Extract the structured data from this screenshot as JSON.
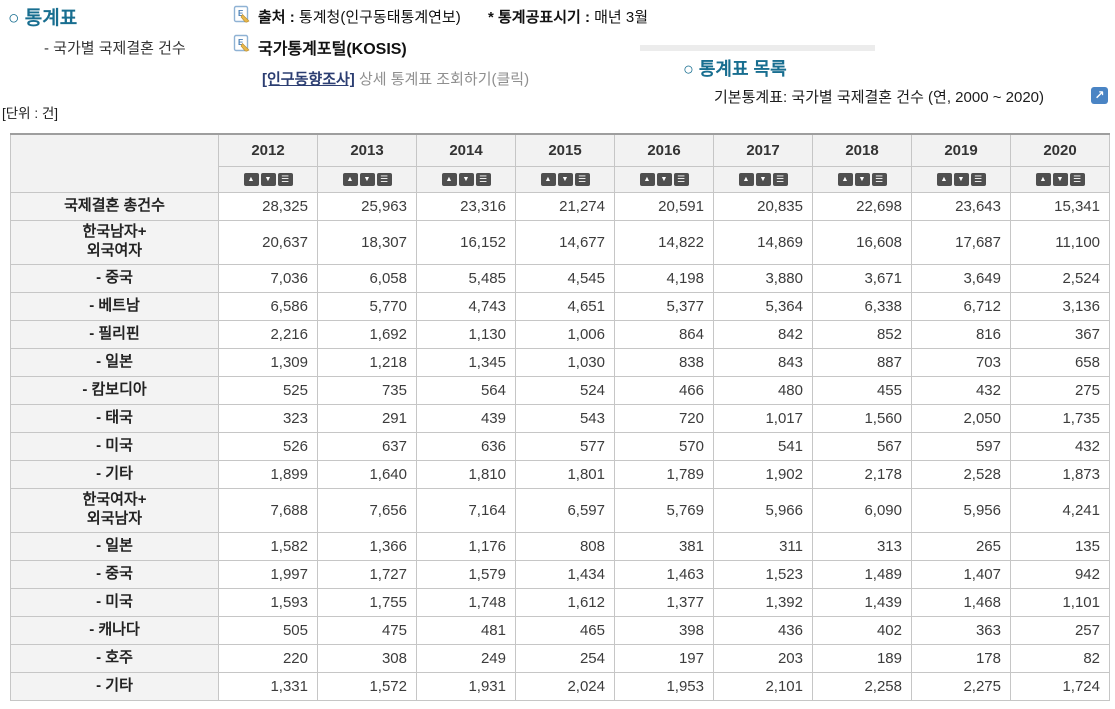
{
  "header": {
    "left_title": "○ 통계표",
    "left_subtitle": "- 국가별 국제결혼 건수",
    "source_label": "출처 :",
    "source_value": " 통계청(인구동태통계연보)",
    "publish_label": "* 통계공표시기 :",
    "publish_value": " 매년 3월",
    "kosis_label": "국가통계포털(KOSIS)",
    "survey_link": "[인구동향조사]",
    "survey_suffix": " 상세 통계표 조회하기(클릭)",
    "right_title": "○ 통계표 목록",
    "right_subtitle": "기본통계표: 국가별 국제결혼 건수 (연, 2000 ~ 2020)",
    "unit": "[단위 : 건]"
  },
  "icons": {
    "external_link_glyph": "↗",
    "sort_asc": "▲",
    "sort_desc": "▼",
    "sort_menu": "☰"
  },
  "colors": {
    "section_title": "#186e90",
    "link_navy": "#2c3e72",
    "header_bg": "#f2f2f2",
    "sort_button_bg": "#4f4f4f",
    "external_icon_bg": "#4a84c4"
  },
  "table": {
    "years": [
      "2012",
      "2013",
      "2014",
      "2015",
      "2016",
      "2017",
      "2018",
      "2019",
      "2020"
    ],
    "rows": [
      {
        "label": "국제결혼 총건수",
        "tall": false,
        "values": [
          "28,325",
          "25,963",
          "23,316",
          "21,274",
          "20,591",
          "20,835",
          "22,698",
          "23,643",
          "15,341"
        ]
      },
      {
        "label": "한국남자+\n외국여자",
        "tall": true,
        "values": [
          "20,637",
          "18,307",
          "16,152",
          "14,677",
          "14,822",
          "14,869",
          "16,608",
          "17,687",
          "11,100"
        ]
      },
      {
        "label": "- 중국",
        "tall": false,
        "values": [
          "7,036",
          "6,058",
          "5,485",
          "4,545",
          "4,198",
          "3,880",
          "3,671",
          "3,649",
          "2,524"
        ]
      },
      {
        "label": "- 베트남",
        "tall": false,
        "values": [
          "6,586",
          "5,770",
          "4,743",
          "4,651",
          "5,377",
          "5,364",
          "6,338",
          "6,712",
          "3,136"
        ]
      },
      {
        "label": "- 필리핀",
        "tall": false,
        "values": [
          "2,216",
          "1,692",
          "1,130",
          "1,006",
          "864",
          "842",
          "852",
          "816",
          "367"
        ]
      },
      {
        "label": "- 일본",
        "tall": false,
        "values": [
          "1,309",
          "1,218",
          "1,345",
          "1,030",
          "838",
          "843",
          "887",
          "703",
          "658"
        ]
      },
      {
        "label": "- 캄보디아",
        "tall": false,
        "values": [
          "525",
          "735",
          "564",
          "524",
          "466",
          "480",
          "455",
          "432",
          "275"
        ]
      },
      {
        "label": "- 태국",
        "tall": false,
        "values": [
          "323",
          "291",
          "439",
          "543",
          "720",
          "1,017",
          "1,560",
          "2,050",
          "1,735"
        ]
      },
      {
        "label": "- 미국",
        "tall": false,
        "values": [
          "526",
          "637",
          "636",
          "577",
          "570",
          "541",
          "567",
          "597",
          "432"
        ]
      },
      {
        "label": "- 기타",
        "tall": false,
        "values": [
          "1,899",
          "1,640",
          "1,810",
          "1,801",
          "1,789",
          "1,902",
          "2,178",
          "2,528",
          "1,873"
        ]
      },
      {
        "label": "한국여자+\n외국남자",
        "tall": true,
        "values": [
          "7,688",
          "7,656",
          "7,164",
          "6,597",
          "5,769",
          "5,966",
          "6,090",
          "5,956",
          "4,241"
        ]
      },
      {
        "label": "- 일본",
        "tall": false,
        "values": [
          "1,582",
          "1,366",
          "1,176",
          "808",
          "381",
          "311",
          "313",
          "265",
          "135"
        ]
      },
      {
        "label": "- 중국",
        "tall": false,
        "values": [
          "1,997",
          "1,727",
          "1,579",
          "1,434",
          "1,463",
          "1,523",
          "1,489",
          "1,407",
          "942"
        ]
      },
      {
        "label": "- 미국",
        "tall": false,
        "values": [
          "1,593",
          "1,755",
          "1,748",
          "1,612",
          "1,377",
          "1,392",
          "1,439",
          "1,468",
          "1,101"
        ]
      },
      {
        "label": "- 캐나다",
        "tall": false,
        "values": [
          "505",
          "475",
          "481",
          "465",
          "398",
          "436",
          "402",
          "363",
          "257"
        ]
      },
      {
        "label": "- 호주",
        "tall": false,
        "values": [
          "220",
          "308",
          "249",
          "254",
          "197",
          "203",
          "189",
          "178",
          "82"
        ]
      },
      {
        "label": "- 기타",
        "tall": false,
        "values": [
          "1,331",
          "1,572",
          "1,931",
          "2,024",
          "1,953",
          "2,101",
          "2,258",
          "2,275",
          "1,724"
        ]
      }
    ]
  }
}
